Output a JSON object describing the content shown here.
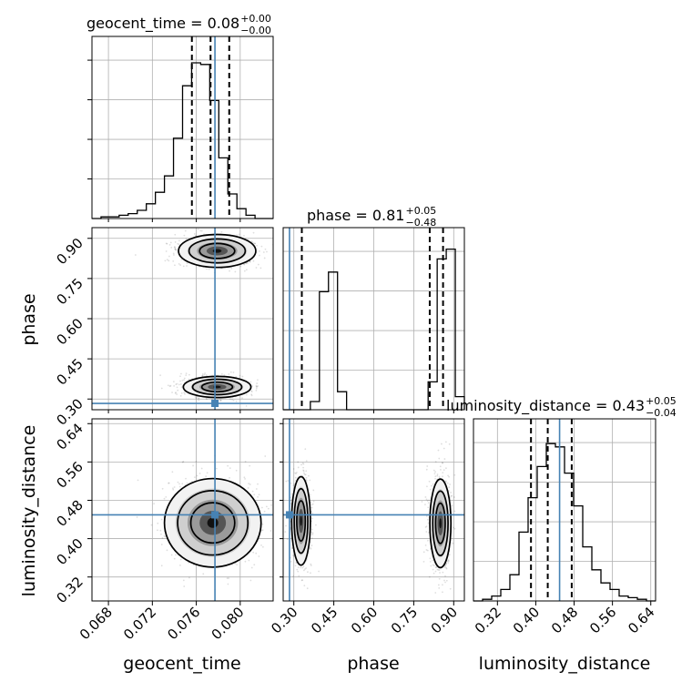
{
  "chart_data": {
    "type": "corner",
    "parameters": [
      {
        "name": "geocent_time",
        "title": {
          "label": "geocent_time = 0.08",
          "upper": "+0.00",
          "lower": "−0.00"
        },
        "range": [
          0.0665,
          0.083
        ],
        "ticks": [
          "0.068",
          "0.072",
          "0.076",
          "0.080"
        ],
        "tick_values": [
          0.068,
          0.072,
          0.076,
          0.08
        ],
        "truth": 0.0777,
        "quantiles": [
          0.0756,
          0.0773,
          0.079
        ],
        "hist": [
          0.0,
          0.01,
          0.01,
          0.02,
          0.03,
          0.05,
          0.09,
          0.16,
          0.26,
          0.49,
          0.81,
          0.95,
          0.94,
          0.72,
          0.37,
          0.15,
          0.06,
          0.02,
          0.0,
          0.0
        ]
      },
      {
        "name": "phase",
        "title": {
          "label": "phase = 0.81",
          "upper": "+0.05",
          "lower": "−0.48"
        },
        "range": [
          0.26,
          0.94
        ],
        "ticks": [
          "0.30",
          "0.45",
          "0.60",
          "0.75",
          "0.90"
        ],
        "tick_values": [
          0.3,
          0.45,
          0.6,
          0.75,
          0.9
        ],
        "truth": 0.2837,
        "quantiles": [
          0.33,
          0.81,
          0.86
        ],
        "hist": [
          0.0,
          0.0,
          0.0,
          0.05,
          0.72,
          0.84,
          0.11,
          0.0,
          0.0,
          0.0,
          0.0,
          0.0,
          0.0,
          0.0,
          0.0,
          0.0,
          0.17,
          0.92,
          0.98,
          0.08
        ]
      },
      {
        "name": "luminosity_distance",
        "title": {
          "label": "luminosity_distance = 0.43",
          "upper": "+0.05",
          "lower": "−0.04"
        },
        "range": [
          0.27,
          0.65
        ],
        "ticks": [
          "0.32",
          "0.40",
          "0.48",
          "0.56",
          "0.64"
        ],
        "tick_values": [
          0.32,
          0.4,
          0.48,
          0.56,
          0.64
        ],
        "truth": 0.4497,
        "quantiles": [
          0.39,
          0.425,
          0.475
        ],
        "hist": [
          0.0,
          0.01,
          0.03,
          0.07,
          0.16,
          0.42,
          0.63,
          0.82,
          0.96,
          0.94,
          0.78,
          0.58,
          0.33,
          0.19,
          0.11,
          0.07,
          0.03,
          0.02,
          0.01,
          0.0
        ]
      }
    ],
    "pairs": [
      {
        "x": "geocent_time",
        "y": "phase",
        "clusters": [
          {
            "cx": 0.0779,
            "cy": 0.853,
            "sx": 0.0016,
            "sy": 0.028
          },
          {
            "cx": 0.0779,
            "cy": 0.345,
            "sx": 0.0014,
            "sy": 0.018
          }
        ]
      },
      {
        "x": "geocent_time",
        "y": "luminosity_distance",
        "clusters": [
          {
            "cx": 0.0775,
            "cy": 0.433,
            "sx": 0.002,
            "sy": 0.042
          }
        ]
      },
      {
        "x": "phase",
        "y": "luminosity_distance",
        "clusters": [
          {
            "cx": 0.327,
            "cy": 0.437,
            "sx": 0.016,
            "sy": 0.042
          },
          {
            "cx": 0.85,
            "cy": 0.432,
            "sx": 0.018,
            "sy": 0.042
          }
        ]
      }
    ],
    "truth_color": "#4682b4",
    "hist_color": "#000000",
    "grid": true
  }
}
